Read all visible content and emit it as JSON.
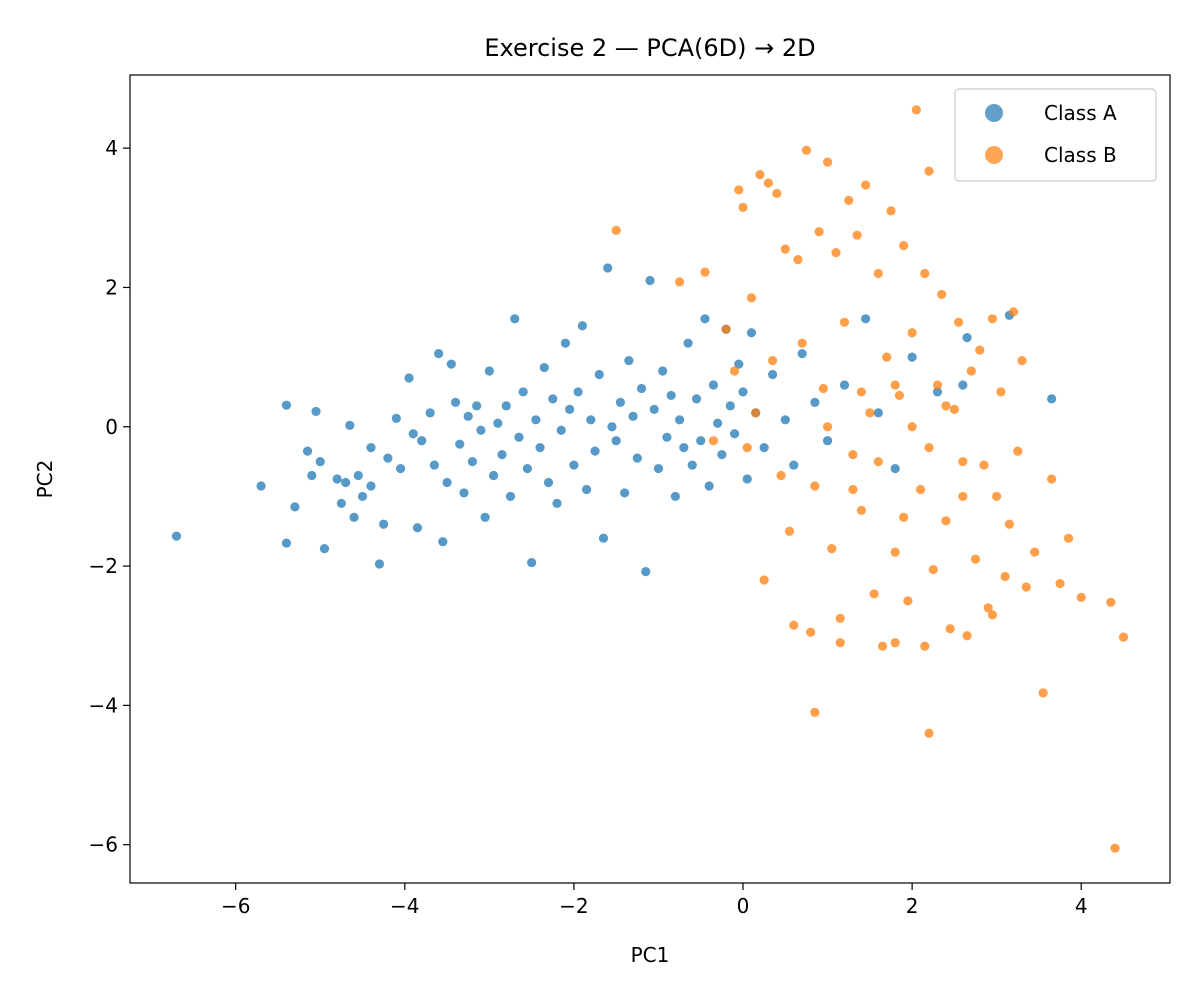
{
  "chart_data": {
    "type": "scatter",
    "title": "Exercise 2 — PCA(6D) → 2D",
    "xlabel": "PC1",
    "ylabel": "PC2",
    "xlim": [
      -7.25,
      5.05
    ],
    "ylim": [
      -6.55,
      5.05
    ],
    "xticks": [
      -6,
      -4,
      -2,
      0,
      2,
      4
    ],
    "yticks": [
      -6,
      -4,
      -2,
      0,
      2,
      4
    ],
    "tick_labels": {
      "x": [
        "−6",
        "−4",
        "−2",
        "0",
        "2",
        "4"
      ],
      "y": [
        "−6",
        "−4",
        "−2",
        "0",
        "2",
        "4"
      ]
    },
    "grid": false,
    "legend_position": "top-right",
    "series": [
      {
        "name": "Class A",
        "color": "#1f77b4",
        "points": [
          [
            -6.7,
            -1.57
          ],
          [
            -5.7,
            -0.85
          ],
          [
            -5.4,
            0.31
          ],
          [
            -5.4,
            -1.67
          ],
          [
            -5.3,
            -1.15
          ],
          [
            -5.15,
            -0.35
          ],
          [
            -5.1,
            -0.7
          ],
          [
            -5.05,
            0.22
          ],
          [
            -5.0,
            -0.5
          ],
          [
            -4.95,
            -1.75
          ],
          [
            -4.8,
            -0.75
          ],
          [
            -4.75,
            -1.1
          ],
          [
            -4.7,
            -0.8
          ],
          [
            -4.65,
            0.02
          ],
          [
            -4.6,
            -1.3
          ],
          [
            -4.55,
            -0.7
          ],
          [
            -4.5,
            -1.0
          ],
          [
            -4.4,
            -0.85
          ],
          [
            -4.4,
            -0.3
          ],
          [
            -4.3,
            -1.97
          ],
          [
            -4.25,
            -1.4
          ],
          [
            -4.2,
            -0.45
          ],
          [
            -4.1,
            0.12
          ],
          [
            -4.05,
            -0.6
          ],
          [
            -3.95,
            0.7
          ],
          [
            -3.9,
            -0.1
          ],
          [
            -3.85,
            -1.45
          ],
          [
            -3.8,
            -0.2
          ],
          [
            -3.7,
            0.2
          ],
          [
            -3.65,
            -0.55
          ],
          [
            -3.6,
            1.05
          ],
          [
            -3.55,
            -1.65
          ],
          [
            -3.5,
            -0.8
          ],
          [
            -3.45,
            0.9
          ],
          [
            -3.4,
            0.35
          ],
          [
            -3.35,
            -0.25
          ],
          [
            -3.3,
            -0.95
          ],
          [
            -3.25,
            0.15
          ],
          [
            -3.2,
            -0.5
          ],
          [
            -3.15,
            0.3
          ],
          [
            -3.1,
            -0.05
          ],
          [
            -3.05,
            -1.3
          ],
          [
            -3.0,
            0.8
          ],
          [
            -2.95,
            -0.7
          ],
          [
            -2.9,
            0.05
          ],
          [
            -2.85,
            -0.4
          ],
          [
            -2.8,
            0.3
          ],
          [
            -2.75,
            -1.0
          ],
          [
            -2.7,
            1.55
          ],
          [
            -2.65,
            -0.15
          ],
          [
            -2.6,
            0.5
          ],
          [
            -2.55,
            -0.6
          ],
          [
            -2.5,
            -1.95
          ],
          [
            -2.45,
            0.1
          ],
          [
            -2.4,
            -0.3
          ],
          [
            -2.35,
            0.85
          ],
          [
            -2.3,
            -0.8
          ],
          [
            -2.25,
            0.4
          ],
          [
            -2.2,
            -1.1
          ],
          [
            -2.15,
            -0.05
          ],
          [
            -2.1,
            1.2
          ],
          [
            -2.05,
            0.25
          ],
          [
            -2.0,
            -0.55
          ],
          [
            -1.95,
            0.5
          ],
          [
            -1.9,
            1.45
          ],
          [
            -1.85,
            -0.9
          ],
          [
            -1.8,
            0.1
          ],
          [
            -1.75,
            -0.35
          ],
          [
            -1.7,
            0.75
          ],
          [
            -1.65,
            -1.6
          ],
          [
            -1.6,
            2.28
          ],
          [
            -1.55,
            0.0
          ],
          [
            -1.5,
            -0.2
          ],
          [
            -1.45,
            0.35
          ],
          [
            -1.4,
            -0.95
          ],
          [
            -1.35,
            0.95
          ],
          [
            -1.3,
            0.15
          ],
          [
            -1.25,
            -0.45
          ],
          [
            -1.2,
            0.55
          ],
          [
            -1.15,
            -2.08
          ],
          [
            -1.1,
            2.1
          ],
          [
            -1.05,
            0.25
          ],
          [
            -1.0,
            -0.6
          ],
          [
            -0.95,
            0.8
          ],
          [
            -0.9,
            -0.15
          ],
          [
            -0.85,
            0.45
          ],
          [
            -0.8,
            -1.0
          ],
          [
            -0.75,
            0.1
          ],
          [
            -0.7,
            -0.3
          ],
          [
            -0.65,
            1.2
          ],
          [
            -0.6,
            -0.55
          ],
          [
            -0.55,
            0.4
          ],
          [
            -0.5,
            -0.2
          ],
          [
            -0.45,
            1.55
          ],
          [
            -0.4,
            -0.85
          ],
          [
            -0.35,
            0.6
          ],
          [
            -0.3,
            0.05
          ],
          [
            -0.25,
            -0.4
          ],
          [
            -0.2,
            1.4
          ],
          [
            -0.15,
            0.3
          ],
          [
            -0.1,
            -0.1
          ],
          [
            -0.05,
            0.9
          ],
          [
            0.0,
            0.5
          ],
          [
            0.05,
            -0.75
          ],
          [
            0.1,
            1.35
          ],
          [
            0.15,
            0.2
          ],
          [
            0.25,
            -0.3
          ],
          [
            0.35,
            0.75
          ],
          [
            0.5,
            0.1
          ],
          [
            0.6,
            -0.55
          ],
          [
            0.7,
            1.05
          ],
          [
            0.85,
            0.35
          ],
          [
            1.0,
            -0.2
          ],
          [
            1.2,
            0.6
          ],
          [
            1.45,
            1.55
          ],
          [
            1.6,
            0.2
          ],
          [
            1.8,
            -0.6
          ],
          [
            2.0,
            1.0
          ],
          [
            2.3,
            0.5
          ],
          [
            2.6,
            0.6
          ],
          [
            2.65,
            1.28
          ],
          [
            3.15,
            1.6
          ],
          [
            3.65,
            0.4
          ]
        ]
      },
      {
        "name": "Class B",
        "color": "#ff7f0e",
        "points": [
          [
            -1.5,
            2.82
          ],
          [
            -0.75,
            2.08
          ],
          [
            -0.45,
            2.22
          ],
          [
            -0.35,
            -0.2
          ],
          [
            -0.2,
            1.4
          ],
          [
            -0.1,
            0.8
          ],
          [
            -0.05,
            3.4
          ],
          [
            0.0,
            3.15
          ],
          [
            0.05,
            -0.3
          ],
          [
            0.1,
            1.85
          ],
          [
            0.15,
            0.2
          ],
          [
            0.2,
            3.62
          ],
          [
            0.25,
            -2.2
          ],
          [
            0.3,
            3.5
          ],
          [
            0.35,
            0.95
          ],
          [
            0.4,
            3.35
          ],
          [
            0.45,
            -0.7
          ],
          [
            0.5,
            2.55
          ],
          [
            0.55,
            -1.5
          ],
          [
            0.6,
            -2.85
          ],
          [
            0.65,
            2.4
          ],
          [
            0.7,
            1.2
          ],
          [
            0.75,
            3.97
          ],
          [
            0.8,
            -2.95
          ],
          [
            0.85,
            -0.85
          ],
          [
            0.9,
            2.8
          ],
          [
            0.95,
            0.55
          ],
          [
            1.0,
            3.8
          ],
          [
            1.05,
            -1.75
          ],
          [
            1.1,
            2.5
          ],
          [
            1.15,
            -2.75
          ],
          [
            1.2,
            1.5
          ],
          [
            1.25,
            3.25
          ],
          [
            1.3,
            -0.4
          ],
          [
            1.35,
            2.75
          ],
          [
            1.4,
            -1.2
          ],
          [
            1.45,
            3.47
          ],
          [
            1.5,
            0.2
          ],
          [
            1.55,
            -2.4
          ],
          [
            1.6,
            2.2
          ],
          [
            1.65,
            -3.15
          ],
          [
            1.7,
            1.0
          ],
          [
            1.75,
            3.1
          ],
          [
            1.8,
            -1.8
          ],
          [
            1.85,
            0.45
          ],
          [
            1.9,
            2.6
          ],
          [
            1.95,
            -2.5
          ],
          [
            2.0,
            1.35
          ],
          [
            2.05,
            4.55
          ],
          [
            2.1,
            -0.9
          ],
          [
            2.15,
            2.2
          ],
          [
            2.2,
            3.67
          ],
          [
            2.25,
            -2.05
          ],
          [
            2.3,
            0.6
          ],
          [
            2.35,
            1.9
          ],
          [
            2.4,
            -1.35
          ],
          [
            2.45,
            -2.9
          ],
          [
            2.5,
            0.25
          ],
          [
            2.55,
            1.5
          ],
          [
            2.6,
            -0.5
          ],
          [
            2.65,
            -3.0
          ],
          [
            2.7,
            0.8
          ],
          [
            2.75,
            -1.9
          ],
          [
            2.8,
            1.1
          ],
          [
            2.85,
            -0.55
          ],
          [
            2.9,
            -2.6
          ],
          [
            2.95,
            1.55
          ],
          [
            3.0,
            -1.0
          ],
          [
            3.05,
            0.5
          ],
          [
            3.1,
            -2.15
          ],
          [
            3.15,
            -1.4
          ],
          [
            3.2,
            1.65
          ],
          [
            3.25,
            -0.35
          ],
          [
            3.3,
            0.95
          ],
          [
            3.35,
            -2.3
          ],
          [
            3.45,
            -1.8
          ],
          [
            3.55,
            -3.82
          ],
          [
            3.65,
            -0.75
          ],
          [
            3.75,
            -2.25
          ],
          [
            3.85,
            -1.6
          ],
          [
            4.0,
            -2.45
          ],
          [
            4.35,
            -2.52
          ],
          [
            4.5,
            -3.02
          ],
          [
            4.4,
            -6.05
          ],
          [
            2.2,
            -4.4
          ],
          [
            0.85,
            -4.1
          ],
          [
            1.15,
            -3.1
          ],
          [
            1.8,
            -3.1
          ],
          [
            2.15,
            -3.15
          ],
          [
            2.95,
            -2.7
          ],
          [
            1.0,
            0.0
          ],
          [
            1.4,
            0.5
          ],
          [
            1.6,
            -0.5
          ],
          [
            2.0,
            0.0
          ],
          [
            2.4,
            0.3
          ],
          [
            2.2,
            -0.3
          ],
          [
            1.8,
            0.6
          ],
          [
            1.3,
            -0.9
          ],
          [
            1.9,
            -1.3
          ],
          [
            2.6,
            -1.0
          ]
        ]
      }
    ]
  }
}
